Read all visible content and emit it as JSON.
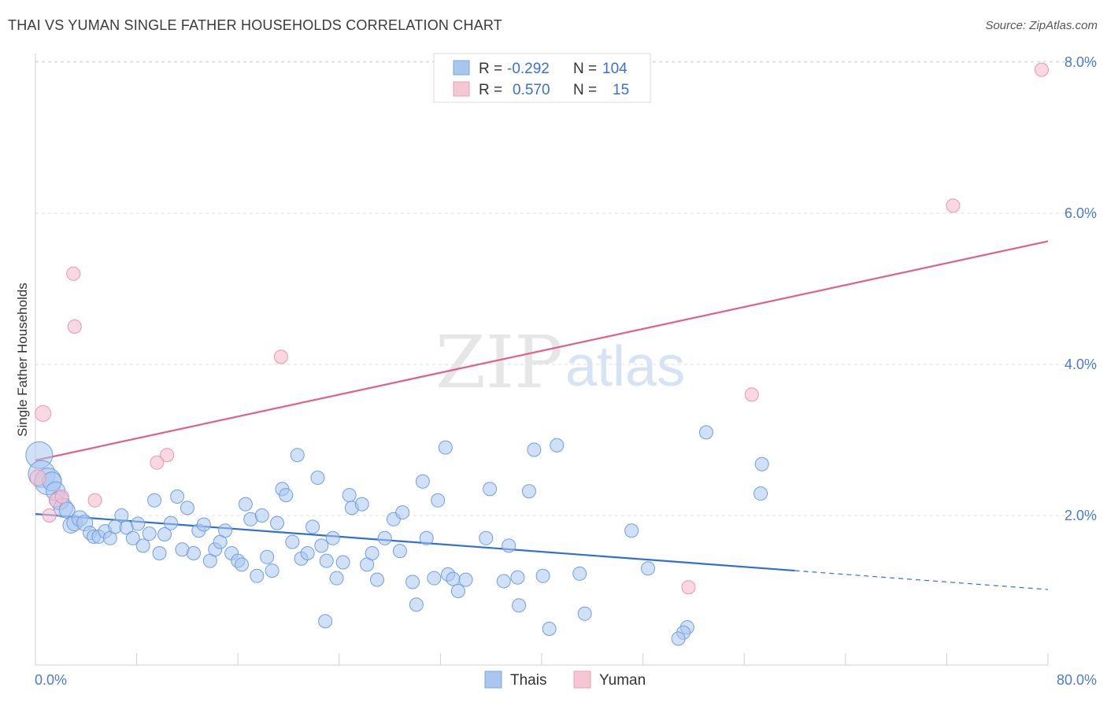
{
  "title": "THAI VS YUMAN SINGLE FATHER HOUSEHOLDS CORRELATION CHART",
  "source": "Source: ZipAtlas.com",
  "watermark": {
    "zip": "ZIP",
    "atlas": "atlas"
  },
  "legend": {
    "rows": [
      {
        "r_label": "R =",
        "r_value": "-0.292",
        "n_label": "N =",
        "n_value": "104",
        "color": "#a9c6ef"
      },
      {
        "r_label": "R =",
        "r_value": "0.570",
        "n_label": "N =",
        "n_value": "15",
        "color": "#f5b8ca"
      }
    ]
  },
  "bottom_legend": [
    {
      "label": "Thais",
      "color": "#a9c6ef"
    },
    {
      "label": "Yuman",
      "color": "#f5b8ca"
    }
  ],
  "chart_data": {
    "type": "scatter",
    "ylabel": "Single Father Households",
    "xlabel": "",
    "xlim": [
      0,
      80
    ],
    "ylim": [
      0,
      8.3
    ],
    "x_tick_labels": [
      "0.0%",
      "80.0%"
    ],
    "y_ticks": [
      2,
      4,
      6,
      8
    ],
    "y_tick_labels": [
      "2.0%",
      "4.0%",
      "6.0%",
      "8.0%"
    ],
    "grid": true,
    "colors": {
      "thais": "#5b95e0",
      "yuman": "#e9859f",
      "thais_line": "#2f6fd6",
      "yuman_line": "#e0608a"
    },
    "series": [
      {
        "name": "Thais",
        "trend": {
          "x0": 0,
          "y0": 2.02,
          "x1": 60,
          "y1": 1.27,
          "dashed_to_x": 80,
          "dashed_to_y": 1.02
        },
        "points": [
          [
            0.3,
            2.8
          ],
          [
            0.5,
            2.55
          ],
          [
            1.0,
            2.45
          ],
          [
            1.3,
            2.45
          ],
          [
            1.6,
            2.32
          ],
          [
            1.9,
            2.2
          ],
          [
            2.2,
            2.1
          ],
          [
            2.5,
            2.07
          ],
          [
            2.8,
            1.87
          ],
          [
            3.1,
            1.9
          ],
          [
            3.5,
            1.96
          ],
          [
            3.9,
            1.9
          ],
          [
            4.3,
            1.77
          ],
          [
            4.6,
            1.72
          ],
          [
            5.0,
            1.72
          ],
          [
            5.5,
            1.79
          ],
          [
            5.9,
            1.7
          ],
          [
            6.3,
            1.85
          ],
          [
            6.8,
            2.0
          ],
          [
            7.2,
            1.84
          ],
          [
            7.7,
            1.7
          ],
          [
            8.1,
            1.89
          ],
          [
            8.5,
            1.6
          ],
          [
            9.0,
            1.76
          ],
          [
            9.4,
            2.2
          ],
          [
            9.8,
            1.5
          ],
          [
            10.2,
            1.75
          ],
          [
            10.7,
            1.9
          ],
          [
            11.2,
            2.25
          ],
          [
            11.6,
            1.55
          ],
          [
            12.0,
            2.1
          ],
          [
            12.5,
            1.5
          ],
          [
            12.9,
            1.8
          ],
          [
            13.3,
            1.88
          ],
          [
            13.8,
            1.4
          ],
          [
            14.2,
            1.55
          ],
          [
            14.6,
            1.65
          ],
          [
            15.0,
            1.8
          ],
          [
            15.5,
            1.5
          ],
          [
            16.0,
            1.4
          ],
          [
            16.3,
            1.35
          ],
          [
            16.6,
            2.15
          ],
          [
            17.0,
            1.95
          ],
          [
            17.5,
            1.2
          ],
          [
            17.9,
            2.0
          ],
          [
            18.3,
            1.45
          ],
          [
            18.7,
            1.27
          ],
          [
            19.1,
            1.9
          ],
          [
            19.5,
            2.35
          ],
          [
            19.8,
            2.27
          ],
          [
            20.3,
            1.65
          ],
          [
            20.7,
            2.8
          ],
          [
            21.0,
            1.43
          ],
          [
            21.5,
            1.5
          ],
          [
            21.9,
            1.85
          ],
          [
            22.3,
            2.5
          ],
          [
            22.6,
            1.6
          ],
          [
            23.0,
            1.4
          ],
          [
            23.5,
            1.7
          ],
          [
            23.8,
            1.17
          ],
          [
            24.3,
            1.38
          ],
          [
            24.8,
            2.27
          ],
          [
            25.0,
            2.1
          ],
          [
            25.8,
            2.15
          ],
          [
            26.2,
            1.35
          ],
          [
            26.6,
            1.5
          ],
          [
            27.6,
            1.7
          ],
          [
            28.3,
            1.95
          ],
          [
            28.8,
            1.53
          ],
          [
            29.0,
            2.04
          ],
          [
            30.6,
            2.45
          ],
          [
            30.9,
            1.7
          ],
          [
            31.8,
            2.2
          ],
          [
            32.6,
            1.22
          ],
          [
            33.0,
            1.16
          ],
          [
            34.0,
            1.15
          ],
          [
            35.6,
            1.7
          ],
          [
            35.9,
            2.35
          ],
          [
            37.4,
            1.6
          ],
          [
            38.1,
            1.18
          ],
          [
            37.0,
            1.13
          ],
          [
            27.0,
            1.15
          ],
          [
            29.8,
            1.12
          ],
          [
            31.5,
            1.17
          ],
          [
            32.4,
            2.9
          ],
          [
            33.4,
            1.0
          ],
          [
            39.4,
            2.87
          ],
          [
            41.2,
            2.93
          ],
          [
            38.2,
            0.81
          ],
          [
            30.1,
            0.82
          ],
          [
            22.9,
            0.6
          ],
          [
            40.1,
            1.2
          ],
          [
            40.6,
            0.5
          ],
          [
            43.0,
            1.23
          ],
          [
            43.4,
            0.7
          ],
          [
            47.1,
            1.8
          ],
          [
            48.4,
            1.3
          ],
          [
            51.5,
            0.52
          ],
          [
            53.0,
            3.1
          ],
          [
            57.3,
            2.29
          ],
          [
            57.4,
            2.68
          ],
          [
            51.2,
            0.45
          ],
          [
            50.8,
            0.37
          ],
          [
            39.0,
            2.32
          ]
        ]
      },
      {
        "name": "Yuman",
        "trend": {
          "x0": 0,
          "y0": 2.73,
          "x1": 80,
          "y1": 5.63
        },
        "points": [
          [
            0.6,
            3.35
          ],
          [
            1.1,
            2.0
          ],
          [
            1.6,
            2.2
          ],
          [
            2.1,
            2.25
          ],
          [
            3.0,
            5.2
          ],
          [
            3.1,
            4.5
          ],
          [
            4.7,
            2.2
          ],
          [
            9.6,
            2.7
          ],
          [
            10.4,
            2.8
          ],
          [
            19.4,
            4.1
          ],
          [
            56.6,
            3.6
          ],
          [
            51.6,
            1.05
          ],
          [
            72.5,
            6.1
          ],
          [
            79.5,
            7.9
          ],
          [
            0.2,
            2.5
          ]
        ]
      }
    ],
    "point_sizes_note": "large bubbles near origin"
  }
}
